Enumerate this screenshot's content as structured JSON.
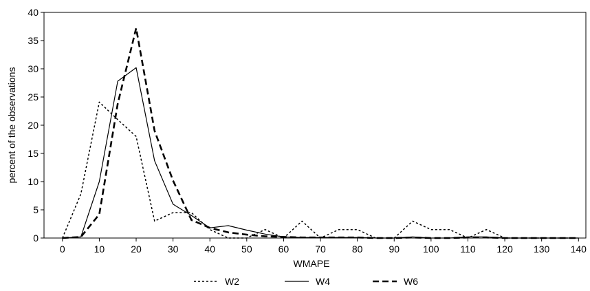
{
  "chart_data": {
    "type": "line",
    "title": "",
    "xlabel": "WMAPE",
    "ylabel": "percent of the observations",
    "xlim": [
      -5,
      142
    ],
    "ylim": [
      0,
      40
    ],
    "x_ticks": [
      0,
      10,
      20,
      30,
      40,
      50,
      60,
      70,
      80,
      90,
      100,
      110,
      120,
      130,
      140
    ],
    "y_ticks": [
      0,
      5,
      10,
      15,
      20,
      25,
      30,
      35,
      40
    ],
    "grid": false,
    "legend_position": "bottom",
    "series": [
      {
        "name": "W2",
        "style": "dotted",
        "x": [
          0,
          5,
          10,
          15,
          20,
          25,
          30,
          35,
          40,
          45,
          50,
          55,
          60,
          65,
          70,
          75,
          80,
          85,
          90,
          95,
          100,
          105,
          110,
          115,
          120,
          125,
          130,
          135,
          140
        ],
        "values": [
          0,
          7.8,
          24.1,
          21.0,
          18.0,
          3.0,
          4.5,
          4.5,
          1.5,
          0,
          0,
          1.5,
          0,
          3.0,
          0,
          1.5,
          1.5,
          0,
          0,
          3.0,
          1.5,
          1.5,
          0,
          1.5,
          0,
          0,
          0,
          0,
          0
        ]
      },
      {
        "name": "W4",
        "style": "solid",
        "x": [
          0,
          5,
          10,
          15,
          20,
          25,
          30,
          35,
          40,
          45,
          50,
          55,
          60,
          65,
          70,
          75,
          80,
          85,
          90,
          95,
          100,
          105,
          110,
          115,
          120,
          125,
          130,
          135,
          140
        ],
        "values": [
          0,
          0.2,
          10.0,
          27.8,
          30.2,
          13.7,
          6.0,
          4.0,
          1.8,
          2.2,
          1.4,
          0.7,
          0.2,
          0.1,
          0.1,
          0.1,
          0.1,
          0,
          0,
          0.2,
          0,
          0,
          0.2,
          0.2,
          0,
          0,
          0,
          0,
          0
        ]
      },
      {
        "name": "W6",
        "style": "dashed",
        "x": [
          0,
          5,
          10,
          15,
          20,
          25,
          30,
          35,
          40,
          45,
          50,
          55,
          60,
          65,
          70,
          75,
          80,
          85,
          90,
          95,
          100,
          105,
          110,
          115,
          120,
          125,
          130,
          135,
          140
        ],
        "values": [
          0,
          0.2,
          4.2,
          23.8,
          37.2,
          19.0,
          10.2,
          3.2,
          1.8,
          1.0,
          0.6,
          0.3,
          0.2,
          0.1,
          0.1,
          0.1,
          0.1,
          0,
          0,
          0.1,
          0,
          0,
          0.1,
          0.1,
          0,
          0,
          0,
          0,
          0
        ]
      }
    ]
  }
}
